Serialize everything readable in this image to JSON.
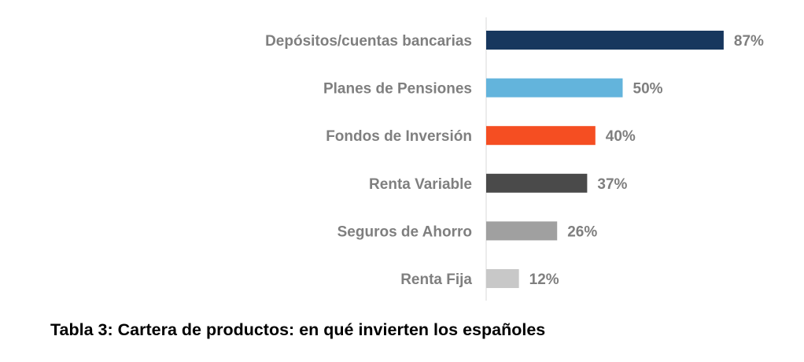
{
  "chart_data": {
    "type": "bar",
    "orientation": "horizontal",
    "categories": [
      "Depósitos/cuentas bancarias",
      "Planes de Pensiones",
      "Fondos de Inversión",
      "Renta Variable",
      "Seguros de Ahorro",
      "Renta Fija"
    ],
    "values": [
      87,
      50,
      40,
      37,
      26,
      12
    ],
    "value_labels": [
      "87%",
      "50%",
      "40%",
      "37%",
      "26%",
      "12%"
    ],
    "colors": [
      "#17375e",
      "#63b4dc",
      "#f54e22",
      "#4a4a4a",
      "#a0a0a0",
      "#c8c8c8"
    ],
    "unit": "%",
    "xlim": [
      0,
      100
    ],
    "grid": false,
    "legend": "none"
  },
  "caption": "Tabla 3: Cartera de productos: en qué invierten los españoles"
}
